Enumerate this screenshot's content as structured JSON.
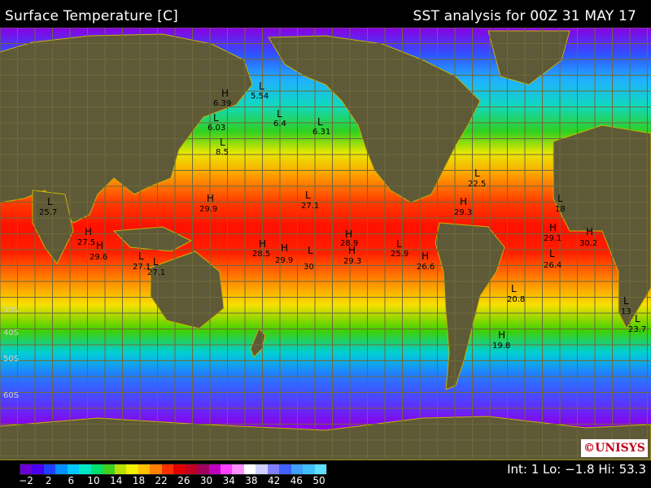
{
  "header": {
    "title": "Surface Temperature [C]",
    "analysis": "SST analysis for 00Z 31 MAY 17"
  },
  "legend": {
    "ticks": [
      "−2",
      "2",
      "6",
      "10",
      "14",
      "18",
      "22",
      "26",
      "30",
      "34",
      "38",
      "42",
      "46",
      "50"
    ],
    "colors": [
      "#6a00d8",
      "#4a00f0",
      "#1e40ff",
      "#0090ff",
      "#00c8ff",
      "#00e8c8",
      "#00e070",
      "#40d020",
      "#b8e000",
      "#f0f000",
      "#ffc000",
      "#ff8000",
      "#ff3000",
      "#e00000",
      "#c00020",
      "#a00060",
      "#c000c0",
      "#ff40ff",
      "#ff90ff",
      "#ffffff",
      "#d0d0ff",
      "#8080ff",
      "#4060ff",
      "#40a0ff",
      "#40c0ff",
      "#60e0ff"
    ],
    "stats": "Int: 1 Lo: −1.8 Hi: 53.3"
  },
  "logo": "©UNISYS",
  "colors": {
    "land": "#5e5a37",
    "grid": "#6e6a3c",
    "coast": "#c8b400"
  },
  "markers": [
    {
      "kind": "H",
      "value": "6.39"
    },
    {
      "kind": "L",
      "value": "5.54"
    },
    {
      "kind": "L",
      "value": "6.4"
    },
    {
      "kind": "L",
      "value": "6.31"
    },
    {
      "kind": "L",
      "value": "6.03"
    },
    {
      "kind": "L",
      "value": "8.5"
    },
    {
      "kind": "H",
      "value": "29.9"
    },
    {
      "kind": "L",
      "value": "27.1"
    },
    {
      "kind": "L",
      "value": "25.7"
    },
    {
      "kind": "H",
      "value": "27.5"
    },
    {
      "kind": "H",
      "value": "29.6"
    },
    {
      "kind": "L",
      "value": "27.1"
    },
    {
      "kind": "L",
      "value": "27.1"
    },
    {
      "kind": "H",
      "value": "28.5"
    },
    {
      "kind": "H",
      "value": "29.9"
    },
    {
      "kind": "L",
      "value": "30"
    },
    {
      "kind": "H",
      "value": "28.9"
    },
    {
      "kind": "H",
      "value": "29.3"
    },
    {
      "kind": "L",
      "value": "25.9"
    },
    {
      "kind": "H",
      "value": "26.6"
    },
    {
      "kind": "L",
      "value": "22.5"
    },
    {
      "kind": "H",
      "value": "29.3"
    },
    {
      "kind": "L",
      "value": "18"
    },
    {
      "kind": "H",
      "value": "29.1"
    },
    {
      "kind": "H",
      "value": "30.2"
    },
    {
      "kind": "L",
      "value": "26.4"
    },
    {
      "kind": "L",
      "value": "20.8"
    },
    {
      "kind": "H",
      "value": "19.8"
    },
    {
      "kind": "L",
      "value": "13"
    },
    {
      "kind": "L",
      "value": "23.7"
    }
  ],
  "lat_labels": [
    "30S",
    "40S",
    "50S",
    "60S"
  ]
}
